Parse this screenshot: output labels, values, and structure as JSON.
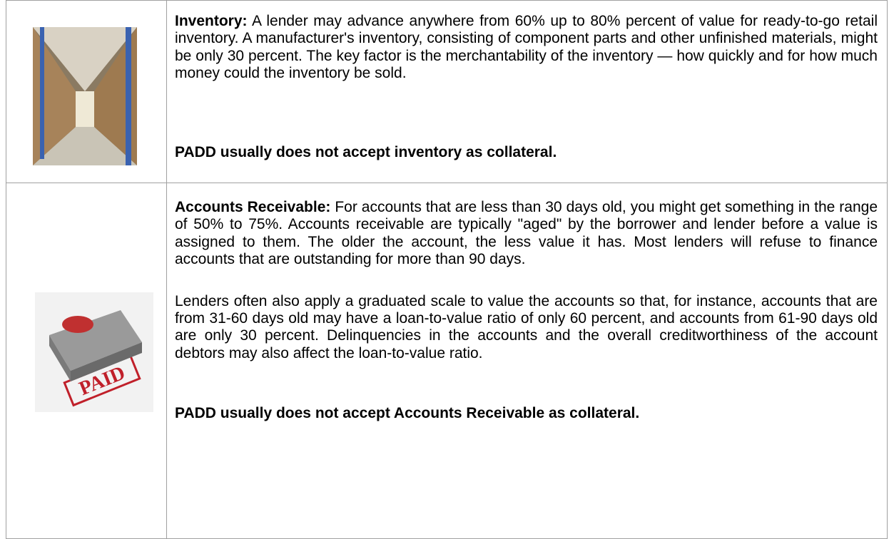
{
  "table": {
    "rows": [
      {
        "label": "Inventory:",
        "paragraphs": [
          "A lender may advance anywhere from 60% up to 80% percent of value for ready-to-go retail inventory. A manufacturer's inventory, consisting of component parts and other unfinished materials, might be only 30 percent. The key factor is the merchantability of the inventory — how quickly and for how much money could the inventory be sold."
        ],
        "note": "PADD usually does not accept inventory as collateral."
      },
      {
        "label": "Accounts Receivable:",
        "image_text": "PAID",
        "paragraphs": [
          "For accounts that are less than 30 days old, you might get something in the range of 50% to 75%. Accounts receivable are typically \"aged\" by the borrower and lender before a value is assigned to them. The older the account, the less value it has. Most lenders will refuse to finance accounts that are outstanding for more than 90 days.",
          "Lenders often also apply a graduated scale to value the accounts so that, for instance, accounts that are from 31-60 days old may have a loan-to-value ratio of only 60 percent, and accounts from 61-90 days old are only 30 percent. Delinquencies in the accounts and the overall creditworthiness of the account debtors may also affect the loan-to-value ratio."
        ],
        "note": "PADD usually does not accept Accounts Receivable as collateral."
      }
    ]
  }
}
